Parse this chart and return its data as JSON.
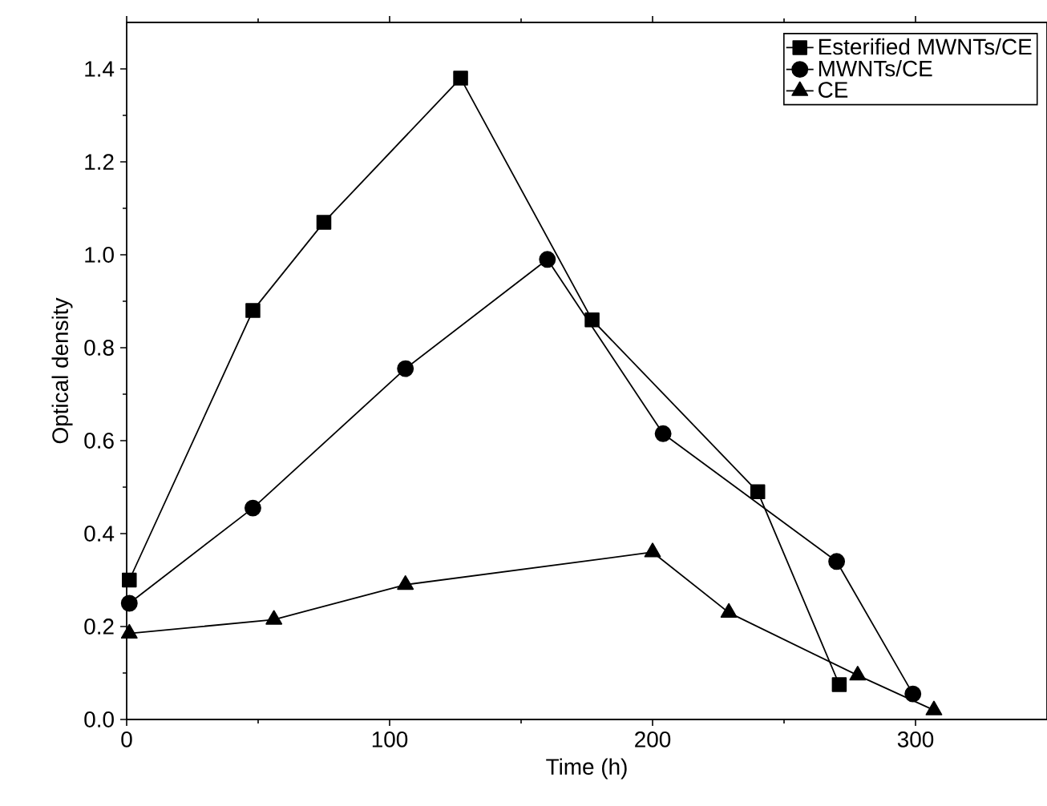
{
  "chart_data": {
    "type": "line",
    "xlabel": "Time (h)",
    "ylabel": "Optical density",
    "xlim": [
      0,
      350
    ],
    "ylim": [
      0,
      1.5
    ],
    "xticks": [
      0,
      100,
      200,
      300
    ],
    "yticks": [
      {
        "value": 0,
        "label": "0.0"
      },
      0.2,
      0.4,
      0.6,
      0.8,
      {
        "value": 1,
        "label": "1.0"
      },
      1.2,
      1.4
    ],
    "legend": "top right",
    "grid": false,
    "line_style": "solid",
    "series": [
      {
        "name": "Esterified MWNTs/CE",
        "color": "#000000",
        "marker": "square",
        "x": [
          1,
          48,
          75,
          127,
          177,
          240,
          271
        ],
        "values": [
          0.3,
          0.88,
          1.07,
          1.38,
          0.86,
          0.49,
          0.075
        ]
      },
      {
        "name": "MWNTs/CE",
        "color": "#000000",
        "marker": "circle",
        "x": [
          1,
          48,
          106,
          160,
          204,
          270,
          299
        ],
        "values": [
          0.25,
          0.455,
          0.755,
          0.99,
          0.615,
          0.34,
          0.055
        ]
      },
      {
        "name": "CE",
        "color": "#000000",
        "marker": "triangle",
        "x": [
          1,
          56,
          106,
          200,
          229,
          278,
          307
        ],
        "values": [
          0.185,
          0.215,
          0.29,
          0.36,
          0.23,
          0.095,
          0.02
        ]
      }
    ]
  }
}
